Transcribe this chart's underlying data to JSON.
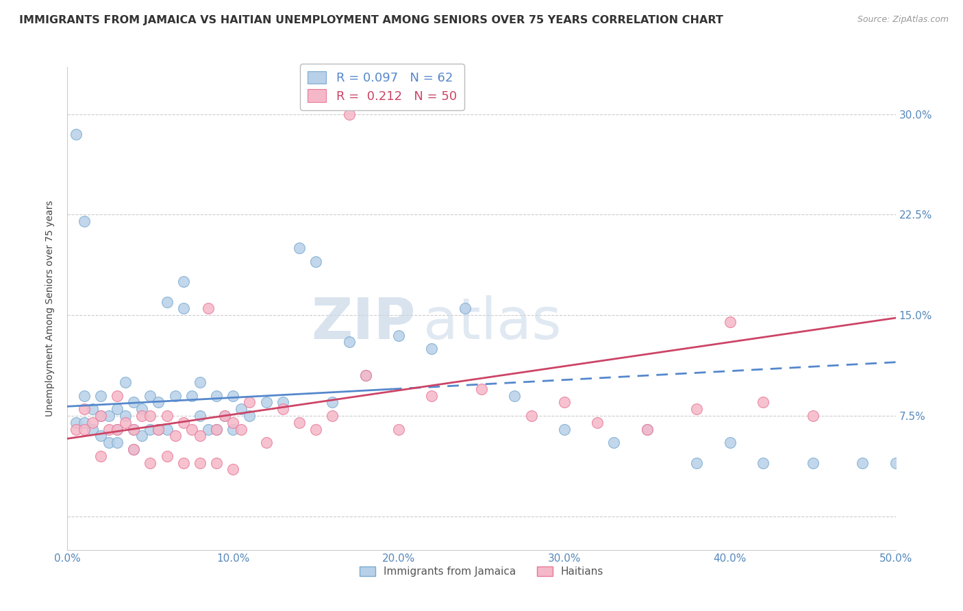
{
  "title": "IMMIGRANTS FROM JAMAICA VS HAITIAN UNEMPLOYMENT AMONG SENIORS OVER 75 YEARS CORRELATION CHART",
  "source": "Source: ZipAtlas.com",
  "ylabel": "Unemployment Among Seniors over 75 years",
  "xlim": [
    0,
    0.5
  ],
  "ylim": [
    -0.025,
    0.335
  ],
  "yticks": [
    0.0,
    0.075,
    0.15,
    0.225,
    0.3
  ],
  "ytick_labels": [
    "",
    "7.5%",
    "15.0%",
    "22.5%",
    "30.0%"
  ],
  "xticks": [
    0.0,
    0.1,
    0.2,
    0.3,
    0.4,
    0.5
  ],
  "xtick_labels": [
    "0.0%",
    "10.0%",
    "20.0%",
    "30.0%",
    "40.0%",
    "50.0%"
  ],
  "blue_color": "#b8d0e8",
  "blue_edge": "#7aaad0",
  "pink_color": "#f5b8c8",
  "pink_edge": "#e87898",
  "trend_blue": "#5588cc",
  "trend_pink": "#cc4466",
  "legend_r_blue": "0.097",
  "legend_n_blue": "62",
  "legend_r_pink": "0.212",
  "legend_n_pink": "50",
  "label_blue": "Immigrants from Jamaica",
  "label_pink": "Haitians",
  "watermark_zip": "ZIP",
  "watermark_atlas": "atlas",
  "blue_x": [
    0.005,
    0.01,
    0.01,
    0.015,
    0.015,
    0.02,
    0.02,
    0.02,
    0.025,
    0.025,
    0.03,
    0.03,
    0.03,
    0.035,
    0.035,
    0.04,
    0.04,
    0.04,
    0.045,
    0.045,
    0.05,
    0.05,
    0.055,
    0.055,
    0.06,
    0.06,
    0.065,
    0.07,
    0.07,
    0.075,
    0.08,
    0.08,
    0.085,
    0.09,
    0.09,
    0.095,
    0.1,
    0.1,
    0.105,
    0.11,
    0.12,
    0.13,
    0.14,
    0.15,
    0.16,
    0.17,
    0.18,
    0.2,
    0.22,
    0.24,
    0.27,
    0.3,
    0.33,
    0.35,
    0.38,
    0.4,
    0.42,
    0.45,
    0.48,
    0.5,
    0.005,
    0.01
  ],
  "blue_y": [
    0.07,
    0.09,
    0.07,
    0.08,
    0.065,
    0.09,
    0.075,
    0.06,
    0.075,
    0.055,
    0.08,
    0.065,
    0.055,
    0.1,
    0.075,
    0.085,
    0.065,
    0.05,
    0.08,
    0.06,
    0.09,
    0.065,
    0.085,
    0.065,
    0.16,
    0.065,
    0.09,
    0.175,
    0.155,
    0.09,
    0.1,
    0.075,
    0.065,
    0.09,
    0.065,
    0.075,
    0.09,
    0.065,
    0.08,
    0.075,
    0.085,
    0.085,
    0.2,
    0.19,
    0.085,
    0.13,
    0.105,
    0.135,
    0.125,
    0.155,
    0.09,
    0.065,
    0.055,
    0.065,
    0.04,
    0.055,
    0.04,
    0.04,
    0.04,
    0.04,
    0.285,
    0.22
  ],
  "pink_x": [
    0.005,
    0.01,
    0.015,
    0.02,
    0.025,
    0.03,
    0.035,
    0.04,
    0.045,
    0.05,
    0.055,
    0.06,
    0.065,
    0.07,
    0.075,
    0.08,
    0.085,
    0.09,
    0.095,
    0.1,
    0.105,
    0.11,
    0.12,
    0.13,
    0.14,
    0.15,
    0.16,
    0.17,
    0.18,
    0.2,
    0.22,
    0.25,
    0.28,
    0.3,
    0.32,
    0.35,
    0.38,
    0.4,
    0.42,
    0.45,
    0.01,
    0.02,
    0.03,
    0.04,
    0.05,
    0.06,
    0.07,
    0.08,
    0.09,
    0.1
  ],
  "pink_y": [
    0.065,
    0.08,
    0.07,
    0.075,
    0.065,
    0.09,
    0.07,
    0.065,
    0.075,
    0.075,
    0.065,
    0.075,
    0.06,
    0.07,
    0.065,
    0.06,
    0.155,
    0.065,
    0.075,
    0.07,
    0.065,
    0.085,
    0.055,
    0.08,
    0.07,
    0.065,
    0.075,
    0.3,
    0.105,
    0.065,
    0.09,
    0.095,
    0.075,
    0.085,
    0.07,
    0.065,
    0.08,
    0.145,
    0.085,
    0.075,
    0.065,
    0.045,
    0.065,
    0.05,
    0.04,
    0.045,
    0.04,
    0.04,
    0.04,
    0.035
  ],
  "trend_blue_x0": 0.0,
  "trend_blue_x1": 0.5,
  "trend_blue_y0": 0.082,
  "trend_blue_y1": 0.115,
  "trend_blue_solid_x1": 0.195,
  "trend_pink_x0": 0.0,
  "trend_pink_x1": 0.5,
  "trend_pink_y0": 0.058,
  "trend_pink_y1": 0.148
}
